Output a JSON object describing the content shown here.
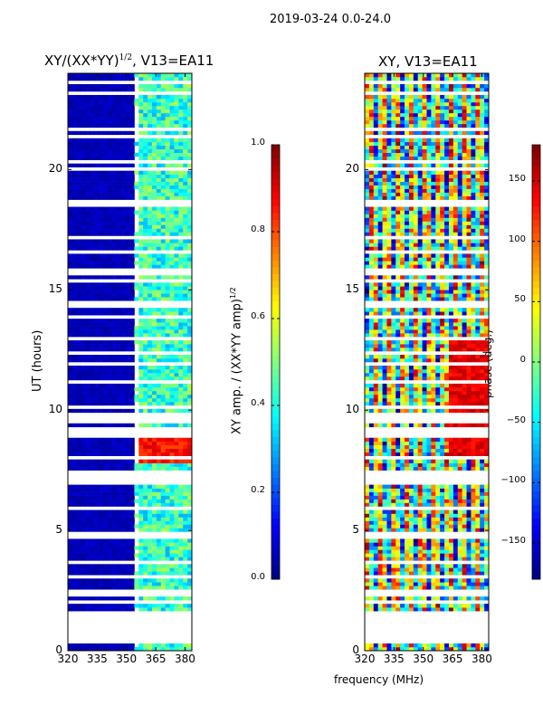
{
  "suptitle": "2019-03-24 0.0-24.0",
  "chart_data": [
    {
      "type": "heatmap",
      "title": "XY/(XX*YY)^1/2, V13=EA11",
      "title_main": "XY/(XX*YY)",
      "title_sup": "1/2",
      "title_rest": ", V13=EA11",
      "xlabel": "frequency (MHz)",
      "ylabel": "UT (hours)",
      "xlim": [
        320,
        383.5
      ],
      "ylim": [
        0,
        24
      ],
      "xticks": [
        "320",
        "335",
        "350",
        "365",
        "380"
      ],
      "yticks": [
        "0",
        "5",
        "10",
        "15",
        "20"
      ],
      "colorbar": {
        "label_main": "XY amp. / (XX*YY amp)",
        "label_sup": "1/2",
        "range": [
          0.0,
          1.0
        ],
        "ticks": [
          "0.0",
          "0.2",
          "0.4",
          "0.6",
          "0.8",
          "1.0"
        ],
        "colormap": "jet"
      },
      "pattern": {
        "low_value_below_mhz": 355,
        "typical_low": 0.05,
        "typical_high": 0.4,
        "peak_hours": [
          7.8,
          9.3
        ],
        "peak_value": 0.85
      }
    },
    {
      "type": "heatmap",
      "title": "XY, V13=EA11",
      "xlabel": "frequency (MHz)",
      "ylabel": "",
      "xlim": [
        320,
        383.5
      ],
      "ylim": [
        0,
        24
      ],
      "xticks": [
        "320",
        "335",
        "350",
        "365",
        "380"
      ],
      "yticks": [
        "0",
        "5",
        "10",
        "15",
        "20"
      ],
      "colorbar": {
        "label": "phase (deg.)",
        "range": [
          -180,
          180
        ],
        "ticks": [
          "-150",
          "-100",
          "-50",
          "0",
          "50",
          "100",
          "150"
        ],
        "colormap": "jet"
      },
      "pattern": {
        "values": "phase wrapped, -180 to 180"
      }
    }
  ],
  "shared_xlabel": "frequency (MHz)"
}
